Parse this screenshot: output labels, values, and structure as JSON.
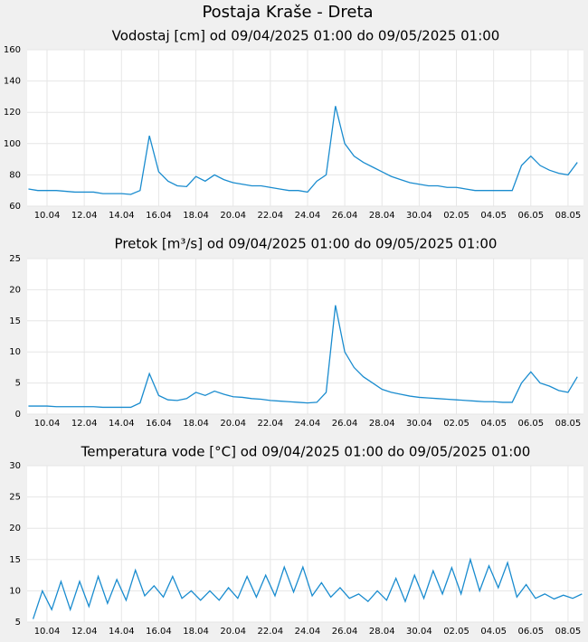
{
  "title": "Postaja Kraše - Dreta",
  "chart_data": [
    {
      "type": "line",
      "title": "Vodostaj [cm] od 09/04/2025 01:00 do 09/05/2025 01:00",
      "x": [
        9,
        9.5,
        10,
        10.5,
        11,
        11.5,
        12,
        12.5,
        13,
        13.5,
        14,
        14.5,
        15,
        15.5,
        16,
        16.5,
        17,
        17.5,
        18,
        18.5,
        19,
        19.5,
        20,
        20.5,
        21,
        21.5,
        22,
        22.5,
        23,
        23.5,
        24,
        24.5,
        25,
        25.5,
        26,
        26.5,
        27,
        27.5,
        28,
        28.5,
        29,
        29.5,
        30,
        30.5,
        31,
        31.5,
        32,
        32.5,
        33,
        33.5,
        34,
        34.5,
        35,
        35.5,
        36,
        36.5,
        37,
        37.5,
        38,
        38.5
      ],
      "values": [
        71,
        70,
        70,
        70,
        69.5,
        69,
        69,
        69,
        68,
        68,
        68,
        67.5,
        70,
        105,
        82,
        76,
        73,
        72.5,
        79,
        76,
        80,
        77,
        75,
        74,
        73,
        73,
        72,
        71,
        70,
        70,
        69,
        76,
        80,
        124,
        100,
        92,
        88,
        85,
        82,
        79,
        77,
        75,
        74,
        73,
        73,
        72,
        72,
        71,
        70,
        70,
        70,
        70,
        70,
        86,
        92,
        86,
        83,
        81,
        80,
        88
      ],
      "color": "#1a8ccf",
      "xlim": [
        8.93,
        38.83
      ],
      "ylim": [
        60,
        160
      ],
      "yticks": [
        60,
        80,
        100,
        120,
        140,
        160
      ],
      "xticks": [
        {
          "value": 10,
          "label": "10.04"
        },
        {
          "value": 12,
          "label": "12.04"
        },
        {
          "value": 14,
          "label": "14.04"
        },
        {
          "value": 16,
          "label": "16.04"
        },
        {
          "value": 18,
          "label": "18.04"
        },
        {
          "value": 20,
          "label": "20.04"
        },
        {
          "value": 22,
          "label": "22.04"
        },
        {
          "value": 24,
          "label": "24.04"
        },
        {
          "value": 26,
          "label": "26.04"
        },
        {
          "value": 28,
          "label": "28.04"
        },
        {
          "value": 30,
          "label": "30.04"
        },
        {
          "value": 32,
          "label": "02.05"
        },
        {
          "value": 34,
          "label": "04.05"
        },
        {
          "value": 36,
          "label": "06.05"
        },
        {
          "value": 38,
          "label": "08.05"
        }
      ],
      "grid": true
    },
    {
      "type": "line",
      "title": "Pretok [m³/s] od 09/04/2025 01:00 do 09/05/2025 01:00",
      "x": [
        9,
        9.5,
        10,
        10.5,
        11,
        11.5,
        12,
        12.5,
        13,
        13.5,
        14,
        14.5,
        15,
        15.5,
        16,
        16.5,
        17,
        17.5,
        18,
        18.5,
        19,
        19.5,
        20,
        20.5,
        21,
        21.5,
        22,
        22.5,
        23,
        23.5,
        24,
        24.5,
        25,
        25.5,
        26,
        26.5,
        27,
        27.5,
        28,
        28.5,
        29,
        29.5,
        30,
        30.5,
        31,
        31.5,
        32,
        32.5,
        33,
        33.5,
        34,
        34.5,
        35,
        35.5,
        36,
        36.5,
        37,
        37.5,
        38,
        38.5
      ],
      "values": [
        1.3,
        1.3,
        1.3,
        1.2,
        1.2,
        1.2,
        1.2,
        1.2,
        1.1,
        1.1,
        1.1,
        1.1,
        1.8,
        6.5,
        3,
        2.3,
        2.2,
        2.5,
        3.5,
        3,
        3.7,
        3.2,
        2.8,
        2.7,
        2.5,
        2.4,
        2.2,
        2.1,
        2,
        1.9,
        1.8,
        1.9,
        3.5,
        17.5,
        10,
        7.5,
        6,
        5,
        4,
        3.5,
        3.2,
        2.9,
        2.7,
        2.6,
        2.5,
        2.4,
        2.3,
        2.2,
        2.1,
        2,
        2,
        1.9,
        1.9,
        5,
        6.8,
        5,
        4.5,
        3.8,
        3.5,
        6
      ],
      "color": "#1a8ccf",
      "xlim": [
        8.93,
        38.83
      ],
      "ylim": [
        0,
        25
      ],
      "yticks": [
        0,
        5,
        10,
        15,
        20,
        25
      ],
      "xticks": [
        {
          "value": 10,
          "label": "10.04"
        },
        {
          "value": 12,
          "label": "12.04"
        },
        {
          "value": 14,
          "label": "14.04"
        },
        {
          "value": 16,
          "label": "16.04"
        },
        {
          "value": 18,
          "label": "18.04"
        },
        {
          "value": 20,
          "label": "20.04"
        },
        {
          "value": 22,
          "label": "22.04"
        },
        {
          "value": 24,
          "label": "24.04"
        },
        {
          "value": 26,
          "label": "26.04"
        },
        {
          "value": 28,
          "label": "28.04"
        },
        {
          "value": 30,
          "label": "30.04"
        },
        {
          "value": 32,
          "label": "02.05"
        },
        {
          "value": 34,
          "label": "04.05"
        },
        {
          "value": 36,
          "label": "06.05"
        },
        {
          "value": 38,
          "label": "08.05"
        }
      ],
      "grid": true
    },
    {
      "type": "line",
      "title": "Temperatura vode [°C] od 09/04/2025 01:00 do 09/05/2025 01:00",
      "x": [
        9.25,
        9.75,
        10.25,
        10.75,
        11.25,
        11.75,
        12.25,
        12.75,
        13.25,
        13.75,
        14.25,
        14.75,
        15.25,
        15.75,
        16.25,
        16.75,
        17.25,
        17.75,
        18.25,
        18.75,
        19.25,
        19.75,
        20.25,
        20.75,
        21.25,
        21.75,
        22.25,
        22.75,
        23.25,
        23.75,
        24.25,
        24.75,
        25.25,
        25.75,
        26.25,
        26.75,
        27.25,
        27.75,
        28.25,
        28.75,
        29.25,
        29.75,
        30.25,
        30.75,
        31.25,
        31.75,
        32.25,
        32.75,
        33.25,
        33.75,
        34.25,
        34.75,
        35.25,
        35.75,
        36.25,
        36.75,
        37.25,
        37.75,
        38.25,
        38.75
      ],
      "values": [
        5.5,
        10,
        7,
        11.5,
        7,
        11.5,
        7.5,
        12.3,
        8,
        11.8,
        8.5,
        13.3,
        9.2,
        10.8,
        9,
        12.3,
        8.8,
        10,
        8.5,
        10,
        8.5,
        10.5,
        8.8,
        12.3,
        9,
        12.5,
        9.2,
        13.8,
        9.8,
        13.8,
        9.2,
        11.3,
        9,
        10.5,
        8.8,
        9.5,
        8.3,
        10,
        8.5,
        12,
        8.3,
        12.5,
        8.8,
        13.2,
        9.5,
        13.7,
        9.5,
        15,
        10,
        14,
        10.5,
        14.5,
        9,
        11,
        8.8,
        9.5,
        8.7,
        9.3,
        8.8,
        9.5
      ],
      "color": "#1a8ccf",
      "xlim": [
        8.93,
        38.83
      ],
      "ylim": [
        5,
        30
      ],
      "yticks": [
        5,
        10,
        15,
        20,
        25,
        30
      ],
      "xticks": [
        {
          "value": 10,
          "label": "10.04"
        },
        {
          "value": 12,
          "label": "12.04"
        },
        {
          "value": 14,
          "label": "14.04"
        },
        {
          "value": 16,
          "label": "16.04"
        },
        {
          "value": 18,
          "label": "18.04"
        },
        {
          "value": 20,
          "label": "20.04"
        },
        {
          "value": 22,
          "label": "22.04"
        },
        {
          "value": 24,
          "label": "24.04"
        },
        {
          "value": 26,
          "label": "26.04"
        },
        {
          "value": 28,
          "label": "28.04"
        },
        {
          "value": 30,
          "label": "30.04"
        },
        {
          "value": 32,
          "label": "02.05"
        },
        {
          "value": 34,
          "label": "04.05"
        },
        {
          "value": 36,
          "label": "06.05"
        },
        {
          "value": 38,
          "label": "08.05"
        }
      ],
      "grid": true
    }
  ]
}
